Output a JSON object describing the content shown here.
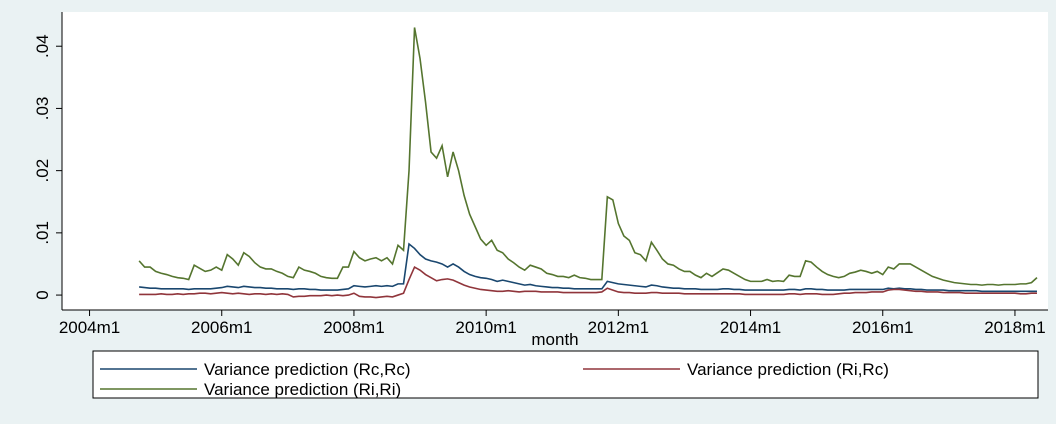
{
  "chart_data": {
    "type": "line",
    "x_label": "month",
    "x": [
      "2004m10",
      "2004m11",
      "2004m12",
      "2005m1",
      "2005m2",
      "2005m3",
      "2005m4",
      "2005m5",
      "2005m6",
      "2005m7",
      "2005m8",
      "2005m9",
      "2005m10",
      "2005m11",
      "2005m12",
      "2006m1",
      "2006m2",
      "2006m3",
      "2006m4",
      "2006m5",
      "2006m6",
      "2006m7",
      "2006m8",
      "2006m9",
      "2006m10",
      "2006m11",
      "2006m12",
      "2007m1",
      "2007m2",
      "2007m3",
      "2007m4",
      "2007m5",
      "2007m6",
      "2007m7",
      "2007m8",
      "2007m9",
      "2007m10",
      "2007m11",
      "2007m12",
      "2008m1",
      "2008m2",
      "2008m3",
      "2008m4",
      "2008m5",
      "2008m6",
      "2008m7",
      "2008m8",
      "2008m9",
      "2008m10",
      "2008m11",
      "2008m12",
      "2009m1",
      "2009m2",
      "2009m3",
      "2009m4",
      "2009m5",
      "2009m6",
      "2009m7",
      "2009m8",
      "2009m9",
      "2009m10",
      "2009m11",
      "2009m12",
      "2010m1",
      "2010m2",
      "2010m3",
      "2010m4",
      "2010m5",
      "2010m6",
      "2010m7",
      "2010m8",
      "2010m9",
      "2010m10",
      "2010m11",
      "2010m12",
      "2011m1",
      "2011m2",
      "2011m3",
      "2011m4",
      "2011m5",
      "2011m6",
      "2011m7",
      "2011m8",
      "2011m9",
      "2011m10",
      "2011m11",
      "2011m12",
      "2012m1",
      "2012m2",
      "2012m3",
      "2012m4",
      "2012m5",
      "2012m6",
      "2012m7",
      "2012m8",
      "2012m9",
      "2012m10",
      "2012m11",
      "2012m12",
      "2013m1",
      "2013m2",
      "2013m3",
      "2013m4",
      "2013m5",
      "2013m6",
      "2013m7",
      "2013m8",
      "2013m9",
      "2013m10",
      "2013m11",
      "2013m12",
      "2014m1",
      "2014m2",
      "2014m3",
      "2014m4",
      "2014m5",
      "2014m6",
      "2014m7",
      "2014m8",
      "2014m9",
      "2014m10",
      "2014m11",
      "2014m12",
      "2015m1",
      "2015m2",
      "2015m3",
      "2015m4",
      "2015m5",
      "2015m6",
      "2015m7",
      "2015m8",
      "2015m9",
      "2015m10",
      "2015m11",
      "2015m12",
      "2016m1",
      "2016m2",
      "2016m3",
      "2016m4",
      "2016m5",
      "2016m6",
      "2016m7",
      "2016m8",
      "2016m9",
      "2016m10",
      "2016m11",
      "2016m12",
      "2017m1",
      "2017m2",
      "2017m3",
      "2017m4",
      "2017m5",
      "2017m6",
      "2017m7",
      "2017m8",
      "2017m9",
      "2017m10",
      "2017m11",
      "2017m12",
      "2018m1",
      "2018m2",
      "2018m3",
      "2018m4",
      "2018m5"
    ],
    "series": [
      {
        "name": "Variance prediction (Rc,Rc)",
        "color": "#1a476f",
        "values": [
          0.0013,
          0.0012,
          0.0011,
          0.0011,
          0.001,
          0.001,
          0.001,
          0.001,
          0.001,
          0.0009,
          0.001,
          0.001,
          0.001,
          0.001,
          0.0011,
          0.0012,
          0.0014,
          0.0013,
          0.0012,
          0.0014,
          0.0013,
          0.0012,
          0.0012,
          0.0011,
          0.0011,
          0.001,
          0.001,
          0.001,
          0.0009,
          0.001,
          0.001,
          0.0009,
          0.0009,
          0.0008,
          0.0008,
          0.0008,
          0.0008,
          0.0009,
          0.001,
          0.0015,
          0.0014,
          0.0013,
          0.0014,
          0.0015,
          0.0014,
          0.0015,
          0.0014,
          0.0018,
          0.0018,
          0.0082,
          0.0075,
          0.0065,
          0.0058,
          0.0055,
          0.0053,
          0.005,
          0.0045,
          0.005,
          0.0045,
          0.0038,
          0.0033,
          0.003,
          0.0028,
          0.0027,
          0.0025,
          0.0022,
          0.0024,
          0.0022,
          0.002,
          0.0018,
          0.0016,
          0.0017,
          0.0015,
          0.0014,
          0.0013,
          0.0012,
          0.0012,
          0.0011,
          0.0011,
          0.001,
          0.001,
          0.001,
          0.001,
          0.001,
          0.001,
          0.0022,
          0.002,
          0.0018,
          0.0017,
          0.0016,
          0.0015,
          0.0014,
          0.0013,
          0.0016,
          0.0015,
          0.0013,
          0.0012,
          0.0011,
          0.0011,
          0.001,
          0.001,
          0.001,
          0.0009,
          0.0009,
          0.0009,
          0.0009,
          0.001,
          0.001,
          0.0009,
          0.0009,
          0.0008,
          0.0008,
          0.0008,
          0.0008,
          0.0008,
          0.0008,
          0.0008,
          0.0008,
          0.0009,
          0.0009,
          0.0008,
          0.001,
          0.001,
          0.0009,
          0.0009,
          0.0008,
          0.0008,
          0.0008,
          0.0008,
          0.0009,
          0.0009,
          0.0009,
          0.0009,
          0.0009,
          0.0009,
          0.0009,
          0.0011,
          0.001,
          0.0011,
          0.001,
          0.001,
          0.0009,
          0.0009,
          0.0008,
          0.0008,
          0.0008,
          0.0008,
          0.0007,
          0.0007,
          0.0007,
          0.0007,
          0.0007,
          0.0007,
          0.0006,
          0.0006,
          0.0006,
          0.0006,
          0.0006,
          0.0006,
          0.0006,
          0.0006,
          0.0006,
          0.0006,
          0.0006
        ]
      },
      {
        "name": "Variance prediction (Ri,Rc)",
        "color": "#90353b",
        "values": [
          0.0001,
          0.0001,
          0.0001,
          0.0001,
          0.0002,
          0.0001,
          0.0001,
          0.0002,
          0.0001,
          0.0002,
          0.0002,
          0.0003,
          0.0003,
          0.0002,
          0.0003,
          0.0004,
          0.0003,
          0.0002,
          0.0003,
          0.0002,
          0.0001,
          0.0002,
          0.0002,
          0.0001,
          0.0002,
          0.0001,
          0.0002,
          0.0001,
          -0.0003,
          -0.0002,
          -0.0002,
          -0.0001,
          -0.0001,
          -0.0001,
          0,
          -0.0001,
          0,
          -0.0001,
          0,
          0.0003,
          -0.0002,
          -0.0003,
          -0.0003,
          -0.0004,
          -0.0003,
          -0.0002,
          -0.0003,
          0,
          0.0003,
          0.0025,
          0.0045,
          0.004,
          0.0033,
          0.0028,
          0.0023,
          0.0025,
          0.0026,
          0.0024,
          0.002,
          0.0016,
          0.0013,
          0.0011,
          0.0009,
          0.0008,
          0.0007,
          0.0006,
          0.0006,
          0.0007,
          0.0006,
          0.0005,
          0.0006,
          0.0006,
          0.0006,
          0.0005,
          0.0005,
          0.0005,
          0.0005,
          0.0004,
          0.0004,
          0.0004,
          0.0004,
          0.0004,
          0.0004,
          0.0004,
          0.0005,
          0.0011,
          0.0008,
          0.0005,
          0.0004,
          0.0004,
          0.0003,
          0.0003,
          0.0003,
          0.0004,
          0.0004,
          0.0003,
          0.0003,
          0.0003,
          0.0003,
          0.0002,
          0.0002,
          0.0002,
          0.0002,
          0.0002,
          0.0002,
          0.0002,
          0.0002,
          0.0002,
          0.0002,
          0.0002,
          0.0001,
          0.0001,
          0.0001,
          0.0001,
          0.0001,
          0.0001,
          0.0001,
          0.0001,
          0.0002,
          0.0002,
          0.0001,
          0.0002,
          0.0002,
          0.0002,
          0.0001,
          0.0001,
          0.0001,
          0.0002,
          0.0003,
          0.0003,
          0.0004,
          0.0004,
          0.0004,
          0.0005,
          0.0005,
          0.0005,
          0.0008,
          0.0009,
          0.0009,
          0.0008,
          0.0007,
          0.0006,
          0.0006,
          0.0005,
          0.0005,
          0.0005,
          0.0004,
          0.0004,
          0.0004,
          0.0004,
          0.0003,
          0.0003,
          0.0003,
          0.0003,
          0.0003,
          0.0003,
          0.0003,
          0.0003,
          0.0003,
          0.0003,
          0.0002,
          0.0002,
          0.0003,
          0.0003
        ]
      },
      {
        "name": "Variance prediction (Ri,Ri)",
        "color": "#55752f",
        "values": [
          0.0055,
          0.0045,
          0.0045,
          0.0038,
          0.0035,
          0.0033,
          0.003,
          0.0028,
          0.0027,
          0.0025,
          0.0048,
          0.0043,
          0.0038,
          0.004,
          0.0045,
          0.004,
          0.0065,
          0.0058,
          0.0048,
          0.0068,
          0.0062,
          0.0052,
          0.0045,
          0.0042,
          0.0042,
          0.0038,
          0.0035,
          0.003,
          0.0028,
          0.0045,
          0.004,
          0.0038,
          0.0035,
          0.003,
          0.0028,
          0.0027,
          0.0027,
          0.0045,
          0.0045,
          0.007,
          0.006,
          0.0055,
          0.0058,
          0.006,
          0.0055,
          0.006,
          0.005,
          0.008,
          0.0072,
          0.02,
          0.043,
          0.038,
          0.031,
          0.023,
          0.022,
          0.024,
          0.019,
          0.023,
          0.02,
          0.016,
          0.013,
          0.011,
          0.009,
          0.008,
          0.0088,
          0.0072,
          0.0068,
          0.0058,
          0.0052,
          0.0045,
          0.004,
          0.0048,
          0.0045,
          0.0042,
          0.0035,
          0.0033,
          0.003,
          0.003,
          0.0028,
          0.0032,
          0.0028,
          0.0027,
          0.0025,
          0.0025,
          0.0025,
          0.0158,
          0.0153,
          0.0115,
          0.0095,
          0.0088,
          0.0068,
          0.0065,
          0.0055,
          0.0085,
          0.0072,
          0.0058,
          0.005,
          0.0048,
          0.0042,
          0.0038,
          0.0038,
          0.0032,
          0.0028,
          0.0035,
          0.003,
          0.0036,
          0.0042,
          0.004,
          0.0035,
          0.003,
          0.0025,
          0.0022,
          0.0022,
          0.0022,
          0.0025,
          0.0022,
          0.0023,
          0.0022,
          0.0032,
          0.003,
          0.003,
          0.0055,
          0.0053,
          0.0045,
          0.0038,
          0.0033,
          0.003,
          0.0028,
          0.003,
          0.0035,
          0.0037,
          0.004,
          0.0038,
          0.0035,
          0.0038,
          0.0033,
          0.0045,
          0.0042,
          0.005,
          0.005,
          0.005,
          0.0045,
          0.004,
          0.0035,
          0.003,
          0.0027,
          0.0024,
          0.0022,
          0.002,
          0.0019,
          0.0018,
          0.0017,
          0.0017,
          0.0016,
          0.0017,
          0.0017,
          0.0016,
          0.0017,
          0.0017,
          0.0017,
          0.0018,
          0.0018,
          0.002,
          0.0028
        ]
      }
    ],
    "xlim": [
      "2003m8",
      "2018m7"
    ],
    "xticks": [
      "2004m1",
      "2006m1",
      "2008m1",
      "2010m1",
      "2012m1",
      "2014m1",
      "2016m1",
      "2018m1"
    ],
    "ylim": [
      -0.0024,
      0.0455
    ],
    "yticks": [
      0,
      {
        "value": 0.01,
        "label": ".01"
      },
      {
        "value": 0.02,
        "label": ".02"
      },
      {
        "value": 0.03,
        "label": ".03"
      },
      {
        "value": 0.04,
        "label": ".04"
      }
    ],
    "legend": "bottom"
  }
}
